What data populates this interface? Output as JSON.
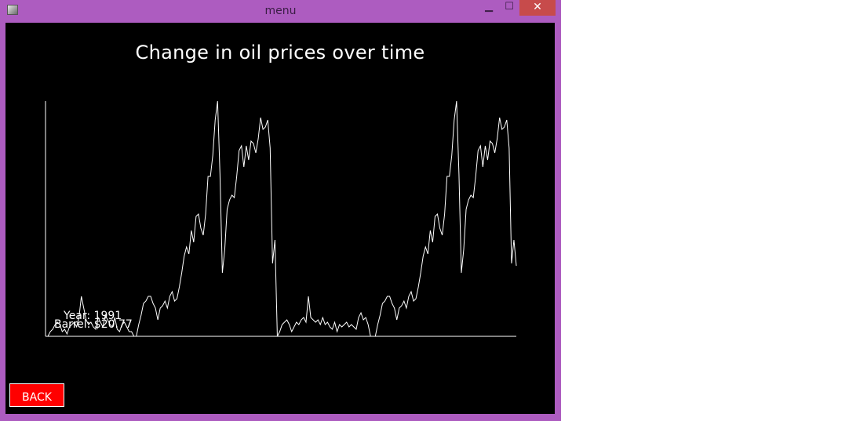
{
  "window": {
    "title": "menu",
    "close_glyph": "✕",
    "minimize_glyph": "▁",
    "maximize_glyph": "☐"
  },
  "colors": {
    "frame": "#ad5cc0",
    "close": "#c74b4b",
    "background": "#000000",
    "line": "#ffffff",
    "button": "#ff0000"
  },
  "tooltip": {
    "year": "Year: 1991",
    "barrel": "Barrel: $20.77"
  },
  "back_label": "BACK",
  "chart_data": {
    "type": "line",
    "title": "Change in oil prices over time",
    "xlabel": "",
    "ylabel": "",
    "grid": false,
    "ylim": [
      0,
      100
    ],
    "series": [
      {
        "values": [
          0,
          0,
          2,
          3,
          5,
          6,
          5,
          2,
          3,
          1,
          4,
          5,
          6,
          4,
          8,
          17,
          12,
          7,
          5,
          6,
          4,
          3,
          8,
          6,
          4,
          9,
          7,
          5,
          4,
          8,
          3,
          2,
          5,
          6,
          4,
          2,
          2,
          0,
          0,
          5,
          9,
          14,
          15,
          17,
          17,
          14,
          12,
          7,
          12,
          13,
          15,
          12,
          17,
          19,
          15,
          16,
          21,
          27,
          34,
          38,
          35,
          45,
          40,
          51,
          52,
          46,
          43,
          52,
          68,
          68,
          77,
          92,
          100,
          69,
          27,
          37,
          54,
          58,
          60,
          59,
          68,
          79,
          81,
          72,
          81,
          75,
          83,
          82,
          78,
          84,
          93,
          88,
          89,
          92,
          80,
          31,
          41,
          0,
          2,
          5,
          6,
          7,
          5,
          2,
          4,
          6,
          5,
          7,
          8,
          6,
          17,
          8,
          7,
          6,
          7,
          5,
          8,
          5,
          6,
          4,
          3,
          6,
          2,
          5,
          4,
          5,
          6,
          4,
          5,
          4,
          3,
          8,
          10,
          7,
          8,
          5,
          0,
          0,
          0,
          5,
          9,
          14,
          15,
          17,
          17,
          14,
          12,
          7,
          12,
          13,
          15,
          12,
          17,
          19,
          15,
          16,
          21,
          27,
          34,
          38,
          35,
          45,
          40,
          51,
          52,
          46,
          43,
          52,
          68,
          68,
          77,
          92,
          100,
          69,
          27,
          37,
          54,
          58,
          60,
          59,
          68,
          79,
          81,
          72,
          81,
          75,
          83,
          82,
          78,
          84,
          93,
          88,
          89,
          92,
          80,
          31,
          41,
          30
        ]
      }
    ]
  }
}
